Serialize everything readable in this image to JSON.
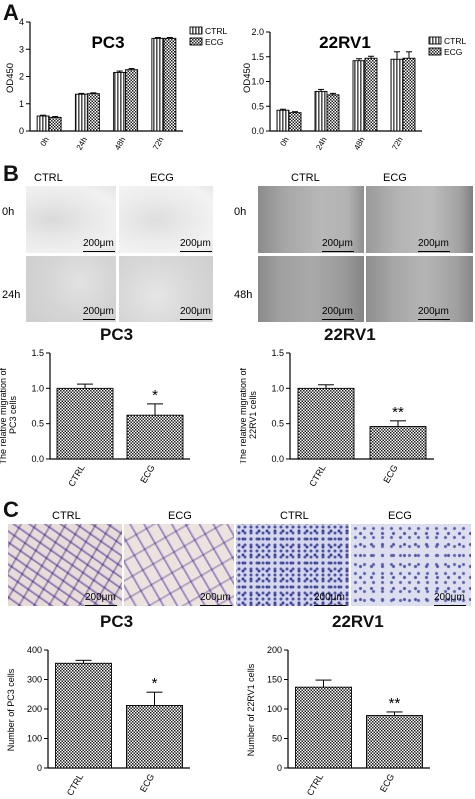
{
  "panels": {
    "a": "A",
    "b": "B",
    "c": "C"
  },
  "micro": {
    "pc3_scratch": {
      "col_labels": [
        "CTRL",
        "ECG"
      ],
      "row_labels": [
        "0h",
        "24h"
      ],
      "scale": "200μm",
      "title": "PC3"
    },
    "rv1_scratch": {
      "col_labels": [
        "CTRL",
        "ECG"
      ],
      "row_labels": [
        "0h",
        "48h"
      ],
      "scale": "200μm",
      "title": "22RV1"
    },
    "pc3_transwell": {
      "col_labels": [
        "CTRL",
        "ECG"
      ],
      "scale": "200μm",
      "title": "PC3"
    },
    "rv1_transwell": {
      "col_labels": [
        "CTRL",
        "ECG"
      ],
      "scale": "200μm",
      "title": "22RV1"
    }
  },
  "chart_data": [
    {
      "id": "pc3_od",
      "type": "bar",
      "title": "PC3",
      "ylabel": "OD450",
      "categories": [
        "0h",
        "24h",
        "48h",
        "72h"
      ],
      "series": [
        {
          "name": "CTRL",
          "values": [
            0.55,
            1.35,
            2.15,
            3.4
          ],
          "errors": [
            0.03,
            0.03,
            0.05,
            0.03
          ]
        },
        {
          "name": "ECG",
          "values": [
            0.5,
            1.37,
            2.25,
            3.4
          ],
          "errors": [
            0.03,
            0.03,
            0.04,
            0.03
          ]
        }
      ],
      "ylim": [
        0,
        4
      ],
      "yticks": [
        "0",
        "1",
        "2",
        "3",
        "4"
      ],
      "legend": "top-right"
    },
    {
      "id": "rv1_od",
      "type": "bar",
      "title": "22RV1",
      "ylabel": "OD450",
      "categories": [
        "0h",
        "24h",
        "48h",
        "72h"
      ],
      "series": [
        {
          "name": "CTRL",
          "values": [
            0.42,
            0.8,
            1.42,
            1.45
          ],
          "errors": [
            0.02,
            0.04,
            0.04,
            0.15
          ]
        },
        {
          "name": "ECG",
          "values": [
            0.37,
            0.73,
            1.47,
            1.47
          ],
          "errors": [
            0.02,
            0.03,
            0.04,
            0.13
          ]
        }
      ],
      "ylim": [
        0,
        2
      ],
      "yticks": [
        "0.0",
        "0.5",
        "1.0",
        "1.5",
        "2.0"
      ],
      "legend": "top-right"
    },
    {
      "id": "pc3_mig",
      "type": "bar",
      "title": "PC3",
      "ylabel": "The relative migration of PC3 cells",
      "categories": [
        "CTRL",
        "ECG"
      ],
      "values": [
        1.0,
        0.62
      ],
      "errors": [
        0.06,
        0.16
      ],
      "annotations": [
        "",
        "*"
      ],
      "ylim": [
        0,
        1.5
      ],
      "yticks": [
        "0.0",
        "0.5",
        "1.0",
        "1.5"
      ]
    },
    {
      "id": "rv1_mig",
      "type": "bar",
      "title": "22RV1",
      "ylabel": "The relative migration of 22RV1 cells",
      "categories": [
        "CTRL",
        "ECG"
      ],
      "values": [
        1.0,
        0.46
      ],
      "errors": [
        0.05,
        0.08
      ],
      "annotations": [
        "",
        "**"
      ],
      "ylim": [
        0,
        1.5
      ],
      "yticks": [
        "0.0",
        "0.5",
        "1.0",
        "1.5"
      ]
    },
    {
      "id": "pc3_count",
      "type": "bar",
      "title": "PC3",
      "ylabel": "Number of PC3 cells",
      "categories": [
        "CTRL",
        "ECG"
      ],
      "values": [
        355,
        212
      ],
      "errors": [
        10,
        45
      ],
      "annotations": [
        "",
        "*"
      ],
      "ylim": [
        0,
        400
      ],
      "yticks": [
        "0",
        "100",
        "200",
        "300",
        "400"
      ]
    },
    {
      "id": "rv1_count",
      "type": "bar",
      "title": "22RV1",
      "ylabel": "Number of 22RV1 cells",
      "categories": [
        "CTRL",
        "ECG"
      ],
      "values": [
        137,
        89
      ],
      "errors": [
        12,
        6
      ],
      "annotations": [
        "",
        "**"
      ],
      "ylim": [
        0,
        200
      ],
      "yticks": [
        "0",
        "50",
        "100",
        "150",
        "200"
      ]
    }
  ]
}
